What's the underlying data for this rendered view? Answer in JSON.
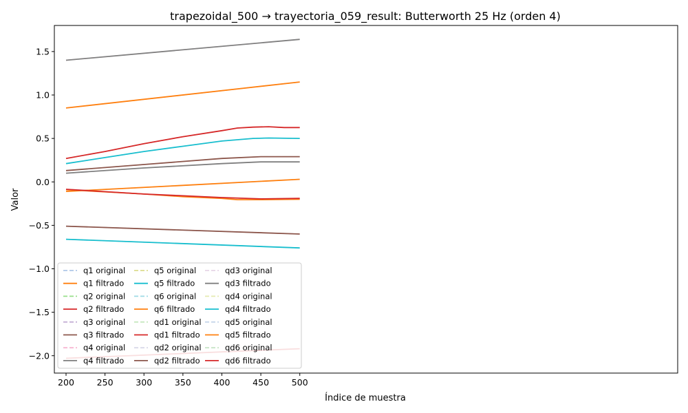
{
  "chart_data": {
    "type": "line",
    "title": "trapezoidal_500 → trayectoria_059_result: Butterworth 25 Hz (orden 4)",
    "xlabel": "Índice de muestra",
    "ylabel": "Valor",
    "xlim": [
      185,
      985
    ],
    "ylim": [
      -2.2,
      1.8
    ],
    "xticks": [
      "200",
      "250",
      "300",
      "350",
      "400",
      "450",
      "500"
    ],
    "yticks": [
      "−2.0",
      "−1.5",
      "−1.0",
      "−0.5",
      "0.0",
      "0.5",
      "1.0",
      "1.5"
    ],
    "grid": false,
    "legend_position": "lower-left",
    "series": [
      {
        "name": "q1 original",
        "color": "#aec7e8",
        "dash": true,
        "x": [
          200,
          500
        ],
        "y": [
          0.85,
          1.15
        ]
      },
      {
        "name": "q1 filtrado",
        "color": "#ff7f0e",
        "dash": false,
        "x": [
          200,
          500
        ],
        "y": [
          0.85,
          1.15
        ]
      },
      {
        "name": "q2 original",
        "color": "#98df8a",
        "dash": true,
        "x": [
          200,
          500
        ],
        "y": [
          -2.03,
          -1.92
        ]
      },
      {
        "name": "q2 filtrado",
        "color": "#d62728",
        "dash": false,
        "x": [
          200,
          500
        ],
        "y": [
          -2.03,
          -1.92
        ]
      },
      {
        "name": "q3 original",
        "color": "#c5b0d5",
        "dash": true,
        "x": [
          200,
          500
        ],
        "y": [
          -0.51,
          -0.6
        ]
      },
      {
        "name": "q3 filtrado",
        "color": "#8c564b",
        "dash": false,
        "x": [
          200,
          500
        ],
        "y": [
          -0.51,
          -0.6
        ]
      },
      {
        "name": "q4 original",
        "color": "#f7b6d2",
        "dash": true,
        "x": [
          200,
          500
        ],
        "y": [
          1.4,
          1.64
        ]
      },
      {
        "name": "q4 filtrado",
        "color": "#7f7f7f",
        "dash": false,
        "x": [
          200,
          500
        ],
        "y": [
          1.4,
          1.64
        ]
      },
      {
        "name": "q5 original",
        "color": "#dbdb8d",
        "dash": true,
        "x": [
          200,
          500
        ],
        "y": [
          -0.66,
          -0.76
        ]
      },
      {
        "name": "q5 filtrado",
        "color": "#17becf",
        "dash": false,
        "x": [
          200,
          500
        ],
        "y": [
          -0.66,
          -0.76
        ]
      },
      {
        "name": "q6 original",
        "color": "#9edae5",
        "dash": true,
        "x": [
          200,
          500
        ],
        "y": [
          -0.11,
          0.03
        ]
      },
      {
        "name": "q6 filtrado",
        "color": "#ff7f0e",
        "dash": false,
        "x": [
          200,
          500
        ],
        "y": [
          -0.11,
          0.03
        ]
      },
      {
        "name": "qd1 original",
        "color": "#c7e9c0",
        "dash": true,
        "x": [
          200,
          250,
          300,
          350,
          400,
          420,
          440,
          460,
          480,
          500
        ],
        "y": [
          0.27,
          0.35,
          0.44,
          0.52,
          0.59,
          0.62,
          0.63,
          0.635,
          0.625,
          0.625
        ]
      },
      {
        "name": "qd1 filtrado",
        "color": "#d62728",
        "dash": false,
        "x": [
          200,
          250,
          300,
          350,
          400,
          420,
          440,
          460,
          480,
          500
        ],
        "y": [
          0.27,
          0.35,
          0.44,
          0.52,
          0.59,
          0.62,
          0.63,
          0.635,
          0.625,
          0.625
        ]
      },
      {
        "name": "qd2 original",
        "color": "#d9d9e8",
        "dash": true,
        "x": [
          200,
          300,
          400,
          450,
          500
        ],
        "y": [
          0.13,
          0.2,
          0.27,
          0.29,
          0.29
        ]
      },
      {
        "name": "qd2 filtrado",
        "color": "#8c564b",
        "dash": false,
        "x": [
          200,
          300,
          400,
          450,
          500
        ],
        "y": [
          0.13,
          0.2,
          0.27,
          0.29,
          0.29
        ]
      },
      {
        "name": "qd3 original",
        "color": "#e6d5e6",
        "dash": true,
        "x": [
          200,
          300,
          400,
          450,
          500
        ],
        "y": [
          0.1,
          0.16,
          0.21,
          0.23,
          0.23
        ]
      },
      {
        "name": "qd3 filtrado",
        "color": "#7f7f7f",
        "dash": false,
        "x": [
          200,
          300,
          400,
          450,
          500
        ],
        "y": [
          0.1,
          0.16,
          0.21,
          0.23,
          0.23
        ]
      },
      {
        "name": "qd4 original",
        "color": "#e5eab0",
        "dash": true,
        "x": [
          200,
          250,
          300,
          350,
          400,
          440,
          460,
          500
        ],
        "y": [
          0.21,
          0.28,
          0.35,
          0.41,
          0.47,
          0.5,
          0.505,
          0.5
        ]
      },
      {
        "name": "qd4 filtrado",
        "color": "#17becf",
        "dash": false,
        "x": [
          200,
          250,
          300,
          350,
          400,
          440,
          460,
          500
        ],
        "y": [
          0.21,
          0.28,
          0.35,
          0.41,
          0.47,
          0.5,
          0.505,
          0.5
        ]
      },
      {
        "name": "qd5 original",
        "color": "#c6d5ea",
        "dash": true,
        "x": [
          200,
          300,
          350,
          400,
          420,
          450,
          500
        ],
        "y": [
          -0.09,
          -0.14,
          -0.17,
          -0.19,
          -0.205,
          -0.205,
          -0.2
        ]
      },
      {
        "name": "qd5 filtrado",
        "color": "#ff7f0e",
        "dash": false,
        "x": [
          200,
          300,
          350,
          400,
          420,
          450,
          500
        ],
        "y": [
          -0.09,
          -0.14,
          -0.17,
          -0.19,
          -0.205,
          -0.205,
          -0.2
        ]
      },
      {
        "name": "qd6 original",
        "color": "#c7e4c5",
        "dash": true,
        "x": [
          200,
          300,
          350,
          400,
          450,
          500
        ],
        "y": [
          -0.085,
          -0.14,
          -0.16,
          -0.18,
          -0.195,
          -0.19
        ]
      },
      {
        "name": "qd6 filtrado",
        "color": "#d62728",
        "dash": false,
        "x": [
          200,
          300,
          350,
          400,
          450,
          500
        ],
        "y": [
          -0.085,
          -0.14,
          -0.16,
          -0.18,
          -0.195,
          -0.19
        ]
      }
    ]
  }
}
